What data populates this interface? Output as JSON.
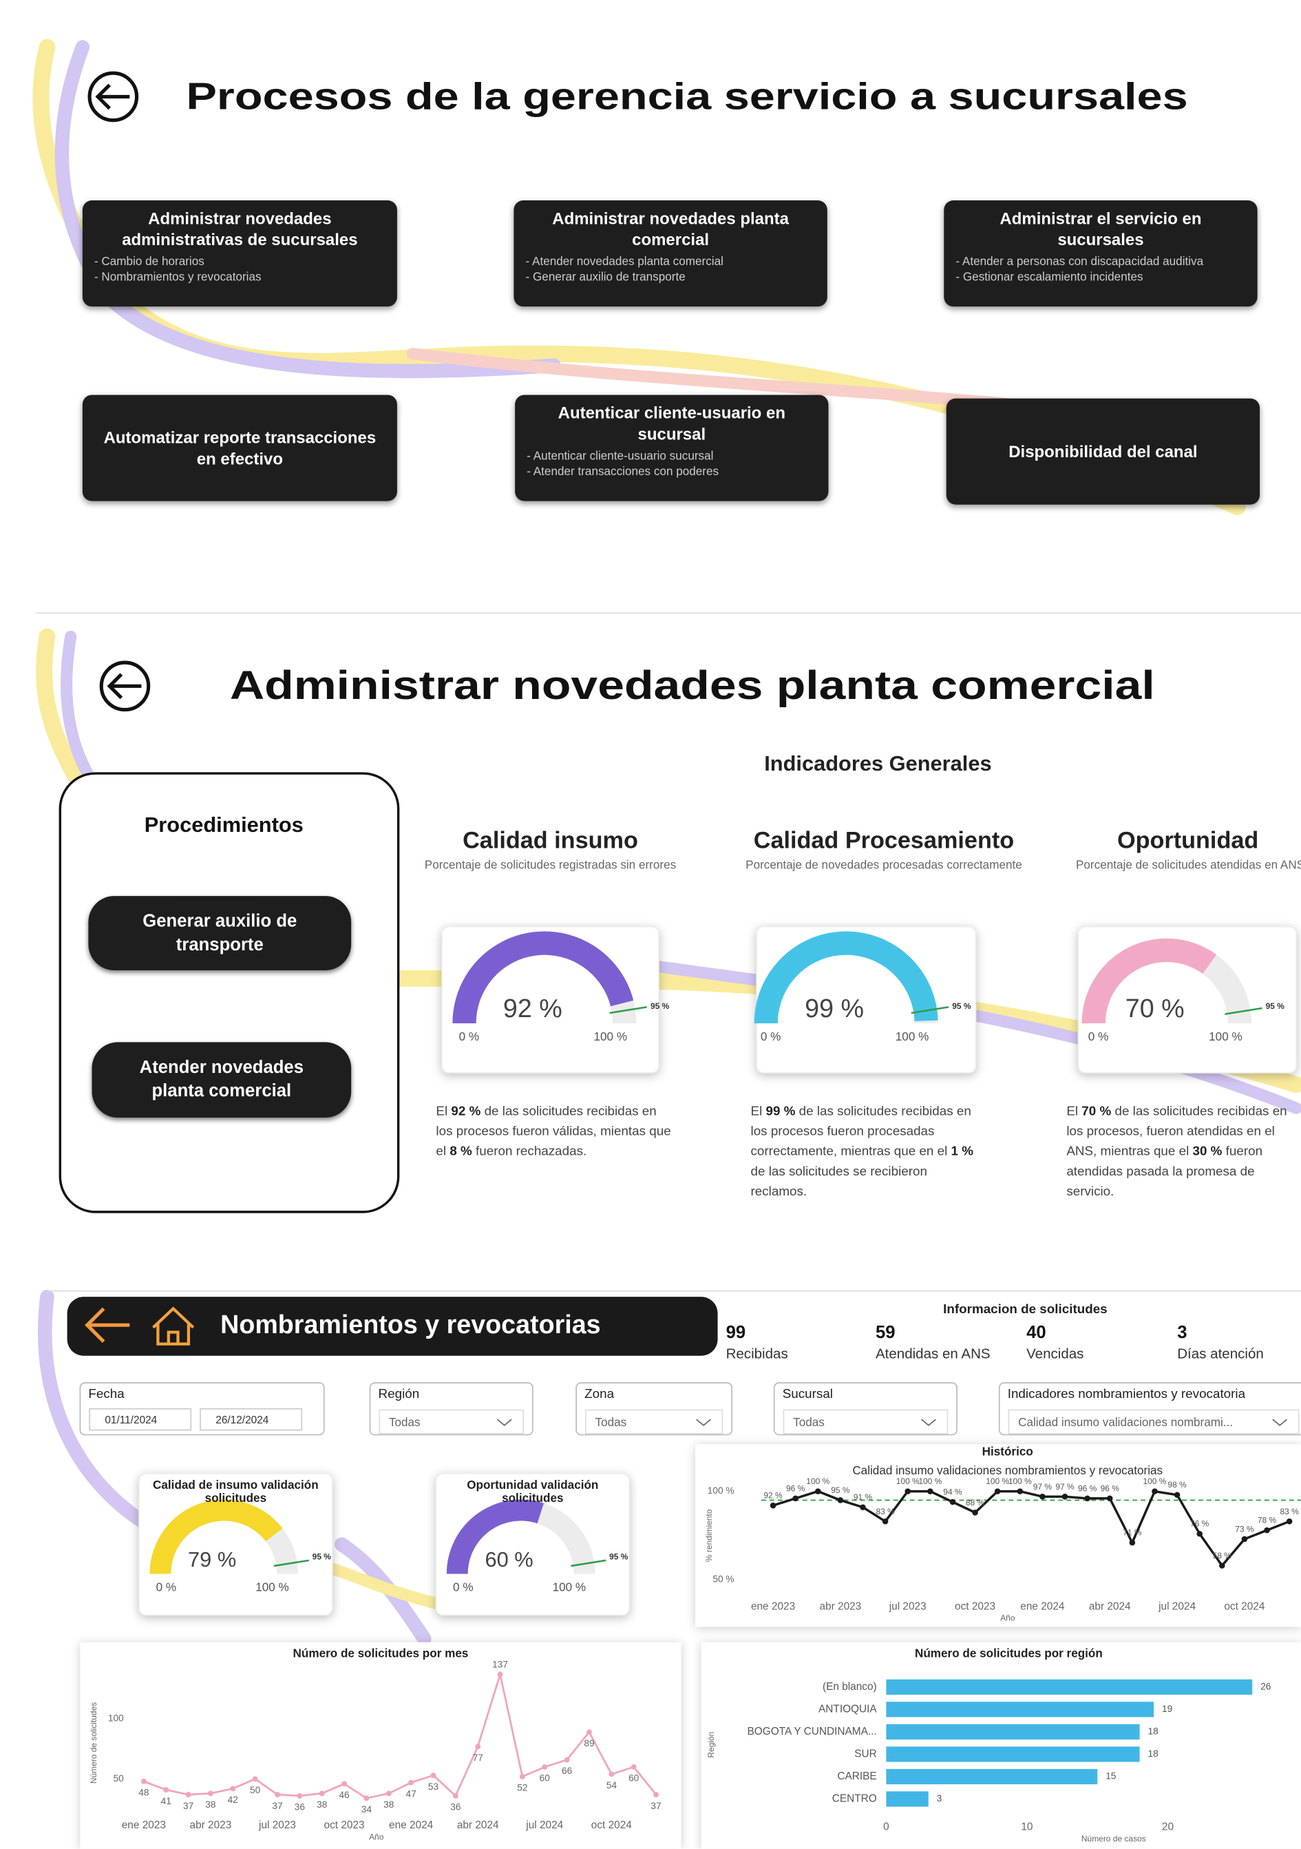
{
  "section1": {
    "title": "Procesos de la gerencia servicio a sucursales",
    "cards": [
      {
        "title": "Administrar novedades administrativas de sucursales",
        "items": [
          "- Cambio de horarios",
          "- Nombramientos y revocatorias"
        ]
      },
      {
        "title": "Administrar novedades planta comercial",
        "items": [
          "- Atender novedades planta comercial",
          "- Generar auxilio de transporte"
        ]
      },
      {
        "title": "Administrar el servicio en sucursales",
        "items": [
          "- Atender a personas con  discapacidad auditiva",
          "- Gestionar escalamiento incidentes"
        ]
      },
      {
        "title": "Automatizar reporte transacciones en efectivo",
        "items": []
      },
      {
        "title": "Autenticar cliente-usuario en sucursal",
        "items": [
          "- Autenticar cliente-usuario sucursal",
          "- Atender transacciones con poderes"
        ]
      },
      {
        "title": "Disponibilidad del canal",
        "items": []
      }
    ]
  },
  "section2": {
    "title": "Administrar novedades planta comercial",
    "procedures_title": "Procedimientos",
    "procedures": [
      "Generar auxilio de transporte",
      "Atender novedades planta comercial"
    ],
    "indicators_title": "Indicadores Generales"
  },
  "section3": {
    "title": "Nombramientos y revocatorias",
    "info_title": "Informacion de solicitudes",
    "kpis": [
      {
        "value": 99,
        "label": "Recibidas"
      },
      {
        "value": 59,
        "label": "Atendidas en ANS"
      },
      {
        "value": 40,
        "label": "Vencidas"
      },
      {
        "value": 3,
        "label": "Días atención"
      }
    ],
    "filters": [
      {
        "label": "Fecha",
        "values": [
          "01/11/2024",
          "26/12/2024"
        ]
      },
      {
        "label": "Región",
        "values": [
          "Todas"
        ]
      },
      {
        "label": "Zona",
        "values": [
          "Todas"
        ]
      },
      {
        "label": "Sucursal",
        "values": [
          "Todas"
        ]
      },
      {
        "label": "Indicadores nombramientos y revocatoria",
        "values": [
          "Calidad insumo validaciones nombrami..."
        ]
      }
    ]
  },
  "chart_data": [
    {
      "type": "gauge",
      "title": "Calidad insumo",
      "subtitle": "Porcentaje de solicitudes registradas sin errores",
      "value": 92,
      "value_label": "92 %",
      "min": {
        "value": 0,
        "label": "0 %"
      },
      "max": {
        "value": 100,
        "label": "100 %"
      },
      "target": {
        "value": 95,
        "label": "95 %"
      },
      "color": "#7b5fd0",
      "description": [
        "El ",
        "92 %",
        " de las solicitudes recibidas en los procesos fueron válidas, mientas que el ",
        "8 %",
        " fueron rechazadas."
      ]
    },
    {
      "type": "gauge",
      "title": "Calidad Procesamiento",
      "subtitle": "Porcentaje de novedades procesadas correctamente",
      "value": 99,
      "value_label": "99 %",
      "min": {
        "value": 0,
        "label": "0 %"
      },
      "max": {
        "value": 100,
        "label": "100 %"
      },
      "target": {
        "value": 95,
        "label": "95 %"
      },
      "color": "#45c3e6",
      "description": [
        "El ",
        "99 %",
        " de las solicitudes recibidas en los procesos fueron procesadas correctamente, mientras que en el ",
        "1 %",
        "  de las solicitudes se recibieron reclamos."
      ]
    },
    {
      "type": "gauge",
      "title": "Oportunidad",
      "subtitle": "Porcentaje de solicitudes atendidas en ANS",
      "value": 70,
      "value_label": "70 %",
      "min": {
        "value": 0,
        "label": "0 %"
      },
      "max": {
        "value": 100,
        "label": "100 %"
      },
      "target": {
        "value": 95,
        "label": "95 %"
      },
      "color": "#f2a9c6",
      "description": [
        "El ",
        "70 %",
        " de las solicitudes recibidas en los procesos, fueron atendidas en el ANS, mientras que el ",
        "30 %",
        " fueron atendidas pasada la promesa de servicio."
      ]
    },
    {
      "type": "gauge",
      "title": "Calidad de insumo validación solicitudes",
      "value": 79,
      "value_label": "79 %",
      "min": {
        "value": 0,
        "label": "0 %"
      },
      "max": {
        "value": 100,
        "label": "100 %"
      },
      "target": {
        "value": 95,
        "label": "95 %"
      },
      "color": "#f6d72c"
    },
    {
      "type": "gauge",
      "title": "Oportunidad validación solicitudes",
      "value": 60,
      "value_label": "60 %",
      "min": {
        "value": 0,
        "label": "0 %"
      },
      "max": {
        "value": 100,
        "label": "100 %"
      },
      "target": {
        "value": 95,
        "label": "95 %"
      },
      "color": "#7b5fd0"
    },
    {
      "type": "line",
      "title": "Histórico",
      "subtitle": "Calidad insumo validaciones nombramientos y revocatorias",
      "x_label": "Año",
      "y_label": "% rendimiento",
      "color": "#1a1a1a",
      "target": 95,
      "target_color": "#3aa845",
      "categories": [
        "ene 2023",
        null,
        null,
        "abr 2023",
        null,
        null,
        "jul 2023",
        null,
        null,
        "oct 2023",
        null,
        null,
        "ene 2024",
        null,
        null,
        "abr 2024",
        null,
        null,
        "jul 2024",
        null,
        null,
        "oct 2024",
        null,
        null
      ],
      "values": [
        92,
        96,
        100,
        95,
        91,
        83,
        100,
        100,
        94,
        88,
        100,
        100,
        97,
        97,
        96,
        96,
        71,
        100,
        98,
        76,
        58,
        73,
        78,
        83
      ],
      "value_labels": [
        "92 %",
        "96 %",
        "100 %",
        "95 %",
        "91 %",
        "83 %",
        "100 %",
        "100 %",
        "94 %",
        "88 %",
        "100 %",
        "100 %",
        "97 %",
        "97 %",
        "96 %",
        "96 %",
        "71 %",
        "100 %",
        "98 %",
        "76 %",
        "58 %",
        "73 %",
        "78 %",
        "83 %"
      ],
      "ylim": [
        50,
        100
      ],
      "yticks": [
        {
          "value": 50,
          "label": "50 %"
        },
        {
          "value": 100,
          "label": "100 %"
        }
      ]
    },
    {
      "type": "line",
      "title": "Número de solicitudes por mes",
      "x_label": "Año",
      "y_label": "Número de solicitudes",
      "color": "#f2a3bd",
      "categories": [
        "ene 2023",
        null,
        null,
        "abr 2023",
        null,
        null,
        "jul 2023",
        null,
        null,
        "oct 2023",
        null,
        null,
        "ene 2024",
        null,
        null,
        "abr 2024",
        null,
        null,
        "jul 2024",
        null,
        null,
        "oct 2024",
        null,
        null
      ],
      "values": [
        48,
        41,
        37,
        38,
        42,
        50,
        37,
        36,
        38,
        46,
        34,
        38,
        47,
        53,
        36,
        77,
        137,
        52,
        60,
        66,
        89,
        54,
        60,
        37
      ],
      "ylim": [
        20,
        140
      ],
      "yticks": [
        50,
        100
      ]
    },
    {
      "type": "hbar",
      "title": "Número de solicitudes por región",
      "x_label": "Número de casos",
      "y_label": "Región",
      "color": "#41b6e6",
      "categories": [
        "(En blanco)",
        "ANTIOQUIA",
        "BOGOTA Y CUNDINAMA...",
        "SUR",
        "CARIBE",
        "CENTRO"
      ],
      "values": [
        26,
        19,
        18,
        18,
        15,
        3
      ],
      "xlim": [
        0,
        27
      ],
      "xticks": [
        0,
        10,
        20
      ]
    }
  ]
}
